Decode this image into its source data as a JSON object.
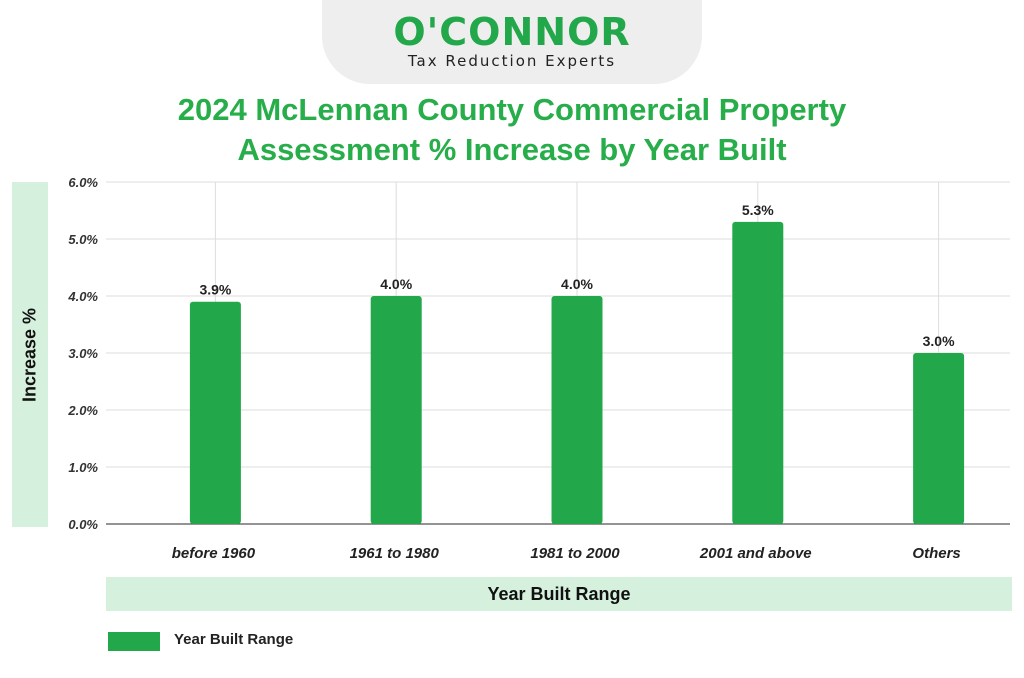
{
  "brand": {
    "name": "O'CONNOR",
    "tagline": "Tax Reduction Experts"
  },
  "colors": {
    "bar": "#22a84a",
    "title": "#27ae4a",
    "band": "#d5f1dd",
    "grid": "#dddddd"
  },
  "chart_data": {
    "type": "bar",
    "title_lines": [
      "2024 McLennan County Commercial Property",
      "Assessment % Increase by Year Built"
    ],
    "xlabel": "Year Built Range",
    "ylabel": "Increase %",
    "categories": [
      "before 1960",
      "1961 to 1980",
      "1981 to 2000",
      "2001 and above",
      "Others"
    ],
    "values": [
      3.9,
      4.0,
      4.0,
      5.3,
      3.0
    ],
    "data_labels": [
      "3.9%",
      "4.0%",
      "4.0%",
      "5.3%",
      "3.0%"
    ],
    "yticks": [
      "0.0%",
      "1.0%",
      "2.0%",
      "3.0%",
      "4.0%",
      "5.0%",
      "6.0%"
    ],
    "ylim": [
      0,
      6
    ],
    "grid": true,
    "legend": {
      "label": "Year Built Range",
      "position": "bottom-left"
    }
  }
}
